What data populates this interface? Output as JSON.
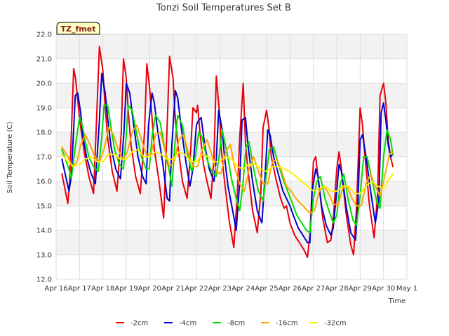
{
  "chart_data": {
    "type": "line",
    "title": "Tonzi Soil Temperatures Set B",
    "xlabel": "Time",
    "ylabel": "Soil Temperature (C)",
    "badge": "TZ_fmet",
    "xlim": [
      16,
      31
    ],
    "ylim": [
      12.0,
      22.0
    ],
    "x_ticks": [
      {
        "value": 16,
        "label": "Apr 16"
      },
      {
        "value": 17,
        "label": "Apr 17"
      },
      {
        "value": 18,
        "label": "Apr 18"
      },
      {
        "value": 19,
        "label": "Apr 19"
      },
      {
        "value": 20,
        "label": "Apr 20"
      },
      {
        "value": 21,
        "label": "Apr 21"
      },
      {
        "value": 22,
        "label": "Apr 22"
      },
      {
        "value": 23,
        "label": "Apr 23"
      },
      {
        "value": 24,
        "label": "Apr 24"
      },
      {
        "value": 25,
        "label": "Apr 25"
      },
      {
        "value": 26,
        "label": "Apr 26"
      },
      {
        "value": 27,
        "label": "Apr 27"
      },
      {
        "value": 28,
        "label": "Apr 28"
      },
      {
        "value": 29,
        "label": "Apr 29"
      },
      {
        "value": 30,
        "label": "Apr 30"
      },
      {
        "value": 31,
        "label": "May 1"
      }
    ],
    "y_ticks": [
      {
        "value": 12,
        "label": "12.0"
      },
      {
        "value": 13,
        "label": "13.0"
      },
      {
        "value": 14,
        "label": "14.0"
      },
      {
        "value": 15,
        "label": "15.0"
      },
      {
        "value": 16,
        "label": "16.0"
      },
      {
        "value": 17,
        "label": "17.0"
      },
      {
        "value": 18,
        "label": "18.0"
      },
      {
        "value": 19,
        "label": "19.0"
      },
      {
        "value": 20,
        "label": "20.0"
      },
      {
        "value": 21,
        "label": "21.0"
      },
      {
        "value": 22,
        "label": "22.0"
      }
    ],
    "grid": true,
    "legend_position": "bottom",
    "series": [
      {
        "name": "-2cm",
        "color": "#e8000b",
        "x": [
          16.25,
          16.5,
          16.58,
          16.75,
          16.83,
          17.0,
          17.08,
          17.2,
          17.4,
          17.6,
          17.75,
          17.85,
          18.0,
          18.08,
          18.2,
          18.4,
          18.6,
          18.78,
          18.88,
          19.0,
          19.08,
          19.2,
          19.4,
          19.6,
          19.78,
          19.88,
          20.0,
          20.1,
          20.2,
          20.4,
          20.6,
          20.72,
          20.85,
          21.0,
          21.08,
          21.2,
          21.4,
          21.6,
          21.75,
          21.85,
          22.0,
          22.05,
          22.15,
          22.3,
          22.45,
          22.62,
          22.75,
          22.85,
          23.0,
          23.05,
          23.2,
          23.4,
          23.6,
          23.75,
          23.85,
          24.0,
          24.1,
          24.2,
          24.4,
          24.6,
          24.75,
          24.85,
          25.0,
          25.1,
          25.2,
          25.4,
          25.6,
          25.75,
          25.85,
          26.0,
          26.2,
          26.4,
          26.6,
          26.75,
          26.85,
          27.0,
          27.1,
          27.2,
          27.4,
          27.6,
          27.75,
          27.85,
          28.0,
          28.1,
          28.2,
          28.4,
          28.6,
          28.72,
          28.85,
          29.0,
          29.1,
          29.2,
          29.4,
          29.6,
          29.75,
          29.85,
          30.0,
          30.1,
          30.2,
          30.3,
          30.4
        ],
        "y": [
          16.3,
          15.1,
          16.0,
          20.6,
          20.2,
          18.6,
          18.0,
          17.2,
          16.2,
          15.5,
          19.0,
          21.5,
          20.5,
          19.3,
          17.8,
          16.4,
          15.6,
          17.9,
          21.0,
          20.2,
          18.9,
          17.5,
          16.2,
          15.5,
          18.0,
          20.8,
          19.8,
          18.6,
          17.3,
          16.0,
          14.5,
          17.5,
          21.1,
          20.2,
          18.8,
          17.5,
          16.0,
          15.3,
          17.2,
          19.0,
          18.8,
          19.1,
          18.0,
          16.7,
          16.0,
          15.3,
          17.0,
          20.3,
          18.6,
          17.4,
          16.0,
          14.4,
          13.3,
          15.5,
          17.8,
          20.0,
          17.5,
          16.5,
          14.8,
          13.9,
          15.5,
          18.2,
          18.9,
          18.2,
          17.0,
          16.1,
          15.3,
          14.9,
          15.0,
          14.3,
          13.8,
          13.5,
          13.2,
          12.9,
          13.8,
          16.8,
          17.0,
          16.2,
          14.5,
          13.5,
          13.6,
          14.4,
          16.5,
          17.2,
          16.5,
          14.7,
          13.4,
          13.0,
          15.0,
          19.0,
          18.3,
          17.1,
          15.0,
          13.7,
          15.5,
          19.5,
          20.0,
          19.2,
          17.7,
          17.0,
          16.6
        ]
      },
      {
        "name": "-4cm",
        "color": "#0000cc",
        "x": [
          16.25,
          16.55,
          16.65,
          16.82,
          16.92,
          17.05,
          17.15,
          17.3,
          17.5,
          17.68,
          17.85,
          17.95,
          18.1,
          18.2,
          18.35,
          18.55,
          18.75,
          18.9,
          19.0,
          19.15,
          19.3,
          19.5,
          19.7,
          19.85,
          19.95,
          20.1,
          20.2,
          20.35,
          20.55,
          20.75,
          20.85,
          20.95,
          21.1,
          21.2,
          21.35,
          21.55,
          21.72,
          21.85,
          22.0,
          22.1,
          22.2,
          22.35,
          22.55,
          22.75,
          22.85,
          22.95,
          23.1,
          23.2,
          23.35,
          23.55,
          23.7,
          23.85,
          23.95,
          24.1,
          24.2,
          24.4,
          24.6,
          24.8,
          24.92,
          25.05,
          25.15,
          25.3,
          25.5,
          25.7,
          25.85,
          26.0,
          26.15,
          26.35,
          26.55,
          26.75,
          26.85,
          26.95,
          27.1,
          27.2,
          27.35,
          27.55,
          27.75,
          27.85,
          28.0,
          28.1,
          28.2,
          28.4,
          28.6,
          28.8,
          28.9,
          29.0,
          29.1,
          29.25,
          29.45,
          29.65,
          29.8,
          29.9,
          30.0,
          30.1,
          30.2,
          30.3,
          30.4
        ],
        "y": [
          16.9,
          15.6,
          16.2,
          19.5,
          19.6,
          18.8,
          17.8,
          17.0,
          16.3,
          15.9,
          18.5,
          20.4,
          19.6,
          18.6,
          17.4,
          16.5,
          16.1,
          18.0,
          20.0,
          19.6,
          18.4,
          17.0,
          16.2,
          15.9,
          18.3,
          19.6,
          19.2,
          18.0,
          16.8,
          15.3,
          15.2,
          17.5,
          19.7,
          19.4,
          18.2,
          16.8,
          15.8,
          16.5,
          18.3,
          18.5,
          18.6,
          17.5,
          16.5,
          16.0,
          16.9,
          18.9,
          18.1,
          17.0,
          15.8,
          14.8,
          14.0,
          16.0,
          18.5,
          18.6,
          17.5,
          16.0,
          14.8,
          14.3,
          16.0,
          18.1,
          17.9,
          17.0,
          16.3,
          15.6,
          15.3,
          15.0,
          14.6,
          14.1,
          13.8,
          13.5,
          13.5,
          15.6,
          16.5,
          16.2,
          15.0,
          14.2,
          13.8,
          14.1,
          15.6,
          16.7,
          16.4,
          15.0,
          13.9,
          13.6,
          15.0,
          17.7,
          17.9,
          17.0,
          15.6,
          14.3,
          15.2,
          18.8,
          19.2,
          18.5,
          17.5,
          17.0,
          17.1
        ]
      },
      {
        "name": "-8cm",
        "color": "#00dd00",
        "x": [
          16.25,
          16.55,
          16.65,
          16.82,
          17.0,
          17.12,
          17.25,
          17.4,
          17.6,
          17.8,
          17.95,
          18.05,
          18.2,
          18.35,
          18.5,
          18.7,
          18.88,
          19.0,
          19.08,
          19.25,
          19.45,
          19.65,
          19.85,
          19.98,
          20.1,
          20.25,
          20.45,
          20.65,
          20.82,
          20.95,
          21.08,
          21.2,
          21.4,
          21.6,
          21.8,
          21.95,
          22.1,
          22.25,
          22.45,
          22.65,
          22.85,
          22.98,
          23.1,
          23.3,
          23.5,
          23.7,
          23.85,
          23.98,
          24.12,
          24.25,
          24.45,
          24.65,
          24.85,
          24.98,
          25.12,
          25.3,
          25.5,
          25.7,
          25.9,
          26.1,
          26.3,
          26.5,
          26.7,
          26.85,
          27.0,
          27.15,
          27.3,
          27.5,
          27.7,
          27.85,
          28.0,
          28.15,
          28.3,
          28.5,
          28.7,
          28.85,
          29.0,
          29.15,
          29.3,
          29.5,
          29.7,
          29.85,
          30.0,
          30.15,
          30.3,
          30.4
        ],
        "y": [
          17.3,
          16.5,
          16.1,
          17.4,
          18.6,
          18.3,
          17.6,
          17.0,
          16.6,
          16.4,
          17.8,
          19.1,
          19.1,
          18.2,
          17.3,
          16.7,
          16.5,
          17.9,
          19.1,
          18.9,
          17.9,
          17.0,
          16.5,
          16.5,
          17.8,
          18.7,
          18.4,
          17.3,
          16.5,
          15.8,
          17.5,
          18.7,
          18.3,
          17.2,
          16.4,
          17.0,
          18.0,
          17.8,
          16.9,
          16.4,
          16.2,
          17.1,
          18.1,
          17.2,
          16.1,
          15.3,
          14.8,
          15.8,
          17.4,
          17.6,
          16.5,
          15.6,
          15.2,
          16.2,
          17.3,
          17.4,
          16.7,
          16.1,
          15.6,
          15.1,
          14.6,
          14.3,
          14.0,
          13.9,
          15.3,
          16.0,
          16.2,
          15.3,
          14.7,
          14.3,
          14.6,
          15.9,
          16.3,
          15.2,
          14.4,
          14.2,
          15.4,
          17.0,
          17.0,
          16.1,
          15.2,
          14.9,
          17.0,
          18.1,
          17.7,
          17.1
        ]
      },
      {
        "name": "-16cm",
        "color": "#ffa500",
        "x": [
          16.25,
          16.5,
          16.7,
          16.9,
          17.05,
          17.25,
          17.45,
          17.65,
          17.85,
          18.05,
          18.25,
          18.45,
          18.65,
          18.85,
          19.05,
          19.25,
          19.45,
          19.65,
          19.85,
          20.05,
          20.25,
          20.45,
          20.65,
          20.85,
          21.05,
          21.25,
          21.45,
          21.65,
          21.85,
          22.05,
          22.25,
          22.45,
          22.65,
          22.85,
          23.05,
          23.25,
          23.45,
          23.65,
          23.85,
          24.05,
          24.25,
          24.45,
          24.65,
          24.85,
          25.05,
          25.25,
          25.45,
          25.65,
          25.85,
          26.05,
          26.25,
          26.45,
          26.65,
          26.85,
          27.05,
          27.25,
          27.45,
          27.65,
          27.85,
          28.05,
          28.25,
          28.45,
          28.65,
          28.85,
          29.05,
          29.25,
          29.45,
          29.65,
          29.85,
          30.05,
          30.25,
          30.4
        ],
        "y": [
          17.4,
          17.0,
          16.6,
          16.8,
          17.5,
          17.9,
          17.5,
          17.0,
          16.8,
          17.3,
          18.2,
          17.9,
          17.3,
          16.9,
          17.2,
          18.0,
          18.3,
          17.7,
          17.1,
          17.1,
          17.9,
          18.0,
          17.3,
          16.6,
          16.8,
          17.7,
          17.9,
          17.2,
          16.6,
          16.6,
          17.3,
          17.7,
          17.1,
          16.4,
          16.3,
          17.2,
          17.5,
          16.5,
          15.9,
          15.6,
          16.5,
          17.0,
          16.4,
          15.9,
          15.9,
          16.8,
          16.9,
          16.4,
          15.8,
          15.6,
          15.3,
          15.1,
          14.9,
          14.7,
          14.8,
          15.6,
          15.8,
          15.5,
          15.1,
          15.0,
          15.7,
          15.8,
          15.3,
          15.0,
          15.0,
          15.9,
          16.3,
          15.8,
          15.4,
          16.2,
          17.1,
          17.2
        ]
      },
      {
        "name": "-32cm",
        "color": "#ffee00",
        "x": [
          16.25,
          16.5,
          16.75,
          17.0,
          17.25,
          17.5,
          17.75,
          18.0,
          18.25,
          18.5,
          18.75,
          19.0,
          19.25,
          19.5,
          19.75,
          20.0,
          20.25,
          20.5,
          20.75,
          21.0,
          21.25,
          21.5,
          21.75,
          22.0,
          22.25,
          22.5,
          22.75,
          23.0,
          23.25,
          23.5,
          23.75,
          24.0,
          24.25,
          24.5,
          24.75,
          25.0,
          25.25,
          25.5,
          25.75,
          26.0,
          26.25,
          26.5,
          26.75,
          27.0,
          27.25,
          27.5,
          27.75,
          28.0,
          28.25,
          28.5,
          28.75,
          29.0,
          29.25,
          29.5,
          29.75,
          30.0,
          30.25,
          30.4
        ],
        "y": [
          17.1,
          16.8,
          16.6,
          16.7,
          16.9,
          17.0,
          16.8,
          16.8,
          17.1,
          17.1,
          16.9,
          16.9,
          17.2,
          17.3,
          17.0,
          17.0,
          17.2,
          17.1,
          16.9,
          16.9,
          17.2,
          17.1,
          16.8,
          16.8,
          17.1,
          17.0,
          16.8,
          16.8,
          17.0,
          16.9,
          16.6,
          16.5,
          16.7,
          16.7,
          16.5,
          16.4,
          16.6,
          16.6,
          16.5,
          16.4,
          16.2,
          16.0,
          15.8,
          15.6,
          15.7,
          15.8,
          15.6,
          15.6,
          15.8,
          15.8,
          15.5,
          15.5,
          15.8,
          16.0,
          15.8,
          15.7,
          16.1,
          16.3
        ]
      }
    ]
  }
}
